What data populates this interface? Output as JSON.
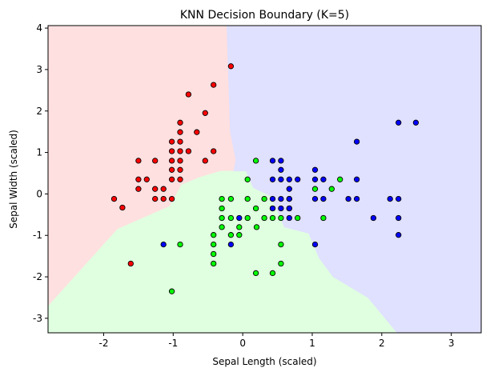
{
  "chart_data": {
    "type": "scatter",
    "title": "KNN Decision Boundary (K=5)",
    "xlabel": "Sepal Length (scaled)",
    "ylabel": "Sepal Width (scaled)",
    "xlim": [
      -2.8,
      3.43
    ],
    "ylim": [
      -3.35,
      4.06
    ],
    "xticks": [
      "-2",
      "-1",
      "0",
      "1",
      "2",
      "3"
    ],
    "yticks": [
      "-3",
      "-2",
      "-1",
      "0",
      "1",
      "2",
      "3",
      "4"
    ],
    "grid": false,
    "legend": "none",
    "regions": [
      {
        "color": "#ffe0e0",
        "class_color": "#ff0000"
      },
      {
        "color": "#e0ffe0",
        "class_color": "#00ff00"
      },
      {
        "color": "#e0e0ff",
        "class_color": "#0000ff"
      }
    ],
    "series": [
      {
        "color": "#ff0000",
        "points": [
          [
            -1.85,
            -0.12
          ],
          [
            -1.73,
            -0.33
          ],
          [
            -1.61,
            -1.68
          ],
          [
            -1.5,
            0.8
          ],
          [
            -1.5,
            0.35
          ],
          [
            -1.5,
            0.12
          ],
          [
            -1.38,
            0.35
          ],
          [
            -1.26,
            0.8
          ],
          [
            -1.26,
            0.12
          ],
          [
            -1.26,
            -0.12
          ],
          [
            -1.14,
            0.12
          ],
          [
            -1.14,
            -0.12
          ],
          [
            -1.02,
            1.26
          ],
          [
            -1.02,
            1.03
          ],
          [
            -1.02,
            0.8
          ],
          [
            -1.02,
            0.58
          ],
          [
            -1.02,
            0.35
          ],
          [
            -1.02,
            -0.12
          ],
          [
            -0.9,
            1.72
          ],
          [
            -0.9,
            1.49
          ],
          [
            -0.9,
            1.26
          ],
          [
            -0.9,
            1.03
          ],
          [
            -0.9,
            0.8
          ],
          [
            -0.9,
            0.58
          ],
          [
            -0.9,
            0.35
          ],
          [
            -0.78,
            2.4
          ],
          [
            -0.78,
            1.03
          ],
          [
            -0.66,
            1.49
          ],
          [
            -0.54,
            1.95
          ],
          [
            -0.54,
            0.8
          ],
          [
            -0.42,
            2.63
          ],
          [
            -0.42,
            1.03
          ],
          [
            -0.17,
            3.08
          ]
        ]
      },
      {
        "color": "#00ff00",
        "points": [
          [
            -1.02,
            -2.35
          ],
          [
            -0.9,
            -1.22
          ],
          [
            -0.42,
            -0.99
          ],
          [
            -0.42,
            -1.22
          ],
          [
            -0.42,
            -1.45
          ],
          [
            -0.42,
            -1.68
          ],
          [
            -0.3,
            -0.12
          ],
          [
            -0.3,
            -0.35
          ],
          [
            -0.3,
            -0.58
          ],
          [
            -0.3,
            -0.8
          ],
          [
            -0.17,
            -0.12
          ],
          [
            -0.17,
            -0.58
          ],
          [
            -0.17,
            -0.99
          ],
          [
            -0.05,
            -0.8
          ],
          [
            -0.05,
            -0.99
          ],
          [
            0.07,
            0.35
          ],
          [
            0.07,
            -0.12
          ],
          [
            0.07,
            -0.58
          ],
          [
            0.19,
            0.8
          ],
          [
            0.19,
            -0.35
          ],
          [
            0.19,
            -1.91
          ],
          [
            0.31,
            -0.12
          ],
          [
            0.31,
            -0.58
          ],
          [
            0.43,
            -1.91
          ],
          [
            0.43,
            -0.58
          ],
          [
            0.55,
            -0.58
          ],
          [
            0.55,
            -1.22
          ],
          [
            0.55,
            -1.68
          ],
          [
            0.67,
            -0.35
          ],
          [
            0.79,
            -0.58
          ],
          [
            1.04,
            0.12
          ],
          [
            1.16,
            -0.58
          ],
          [
            1.28,
            0.12
          ],
          [
            1.4,
            0.35
          ],
          [
            0.2,
            -0.8
          ],
          [
            0.43,
            -0.35
          ],
          [
            0.67,
            -0.12
          ]
        ]
      },
      {
        "color": "#0000ff",
        "points": [
          [
            -1.14,
            -1.22
          ],
          [
            -0.17,
            -1.22
          ],
          [
            -0.05,
            -0.58
          ],
          [
            0.43,
            0.8
          ],
          [
            0.55,
            0.8
          ],
          [
            0.55,
            0.58
          ],
          [
            0.43,
            0.35
          ],
          [
            0.55,
            0.35
          ],
          [
            0.43,
            -0.12
          ],
          [
            0.55,
            -0.12
          ],
          [
            0.67,
            -0.12
          ],
          [
            0.43,
            -0.35
          ],
          [
            0.55,
            -0.35
          ],
          [
            0.67,
            -0.35
          ],
          [
            0.67,
            -0.58
          ],
          [
            0.67,
            0.35
          ],
          [
            0.79,
            0.35
          ],
          [
            0.67,
            0.12
          ],
          [
            1.04,
            0.58
          ],
          [
            1.04,
            0.35
          ],
          [
            1.04,
            -0.12
          ],
          [
            1.04,
            -1.22
          ],
          [
            1.16,
            0.35
          ],
          [
            1.16,
            -0.12
          ],
          [
            1.52,
            -0.12
          ],
          [
            1.64,
            1.26
          ],
          [
            1.64,
            0.35
          ],
          [
            1.64,
            -0.12
          ],
          [
            1.88,
            -0.58
          ],
          [
            2.12,
            -0.12
          ],
          [
            2.24,
            1.72
          ],
          [
            2.24,
            -0.12
          ],
          [
            2.24,
            -0.58
          ],
          [
            2.24,
            -0.99
          ],
          [
            2.49,
            1.72
          ]
        ]
      }
    ]
  }
}
